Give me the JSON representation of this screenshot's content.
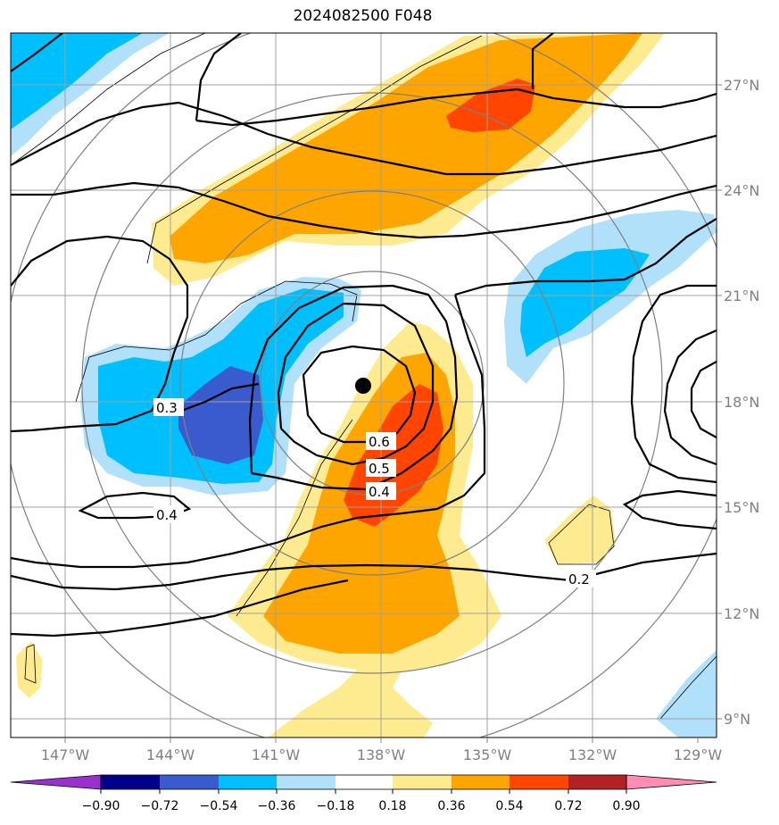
{
  "title": "2024082500 F048",
  "colors": {
    "neg_090": "#9932cc",
    "neg_072": "#00008b",
    "neg_054": "#3a5bcd",
    "neg_036": "#00bfff",
    "neg_018": "#b0e0fa",
    "zero": "#ffffff",
    "pos_018": "#ffeb8f",
    "pos_036": "#ffa500",
    "pos_054": "#ff4500",
    "pos_072": "#b22222",
    "pos_090": "#ff8cb4",
    "grid": "#a0a0a0",
    "range_rings": "#808080",
    "contour": "#000000"
  },
  "longitude_labels": [
    "147°W",
    "144°W",
    "141°W",
    "138°W",
    "135°W",
    "132°W",
    "129°W"
  ],
  "latitude_labels": [
    "27°N",
    "24°N",
    "21°N",
    "18°N",
    "15°N",
    "12°N",
    "9°N"
  ],
  "colorbar_labels": [
    "−0.90",
    "−0.72",
    "−0.54",
    "−0.36",
    "−0.18",
    "0.18",
    "0.36",
    "0.54",
    "0.72",
    "0.90"
  ],
  "contour_labels": [
    "0.3",
    "0.4",
    "0.6",
    "0.5",
    "0.4",
    "0.2"
  ],
  "storm_center": {
    "lon": -138.5,
    "lat": 18.5,
    "marker": "black-dot"
  }
}
